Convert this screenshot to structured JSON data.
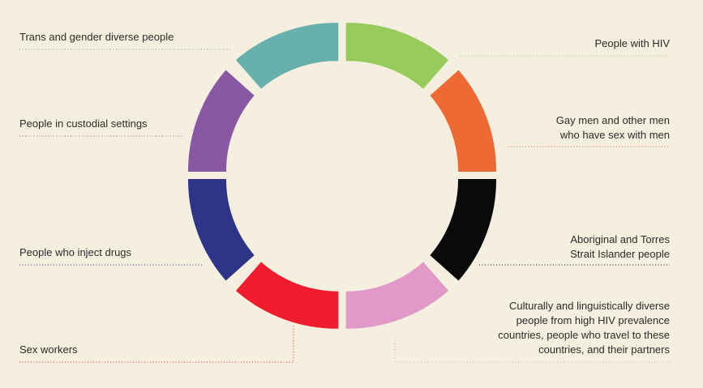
{
  "segments": [
    {
      "id": "people-with-hiv",
      "label": "People with HIV",
      "color": "#97cc5c",
      "side": "right"
    },
    {
      "id": "gay-men",
      "label": "Gay men and other men\nwho have sex with men",
      "color": "#ee6a35",
      "side": "right"
    },
    {
      "id": "aboriginal",
      "label": "Aboriginal and Torres\nStrait Islander people",
      "color": "#0a0a0a",
      "side": "right"
    },
    {
      "id": "cald",
      "label": "Culturally and linguistically diverse\npeople from high HIV prevalence\ncountries, people who travel to these\ncountries, and their partners",
      "color": "#e199c7",
      "side": "right"
    },
    {
      "id": "sex-workers",
      "label": "Sex workers",
      "color": "#ee1c2c",
      "side": "left"
    },
    {
      "id": "inject-drugs",
      "label": "People who inject drugs",
      "color": "#2e3589",
      "side": "left"
    },
    {
      "id": "custodial",
      "label": "People in custodial settings",
      "color": "#8a57a5",
      "side": "left"
    },
    {
      "id": "trans",
      "label": "Trans and gender diverse people",
      "color": "#68b0ab",
      "side": "left"
    }
  ]
}
